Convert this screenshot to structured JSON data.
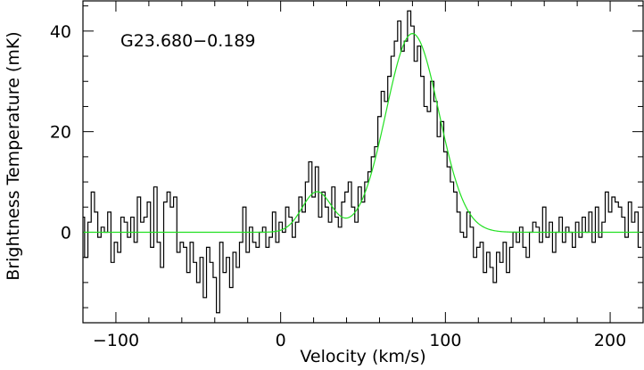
{
  "chart_data": {
    "type": "line",
    "title": "G23.680−0.189",
    "xlabel": "Velocity (km/s)",
    "ylabel": "Brightness Temperature (mK)",
    "xlim": [
      -120,
      220
    ],
    "ylim": [
      -18,
      46
    ],
    "xticks": [
      -100,
      0,
      100,
      200
    ],
    "yticks": [
      0,
      20,
      40
    ],
    "grid": false,
    "legend": "none",
    "series": [
      {
        "style": "step",
        "color": "#000000",
        "x": [
          -120,
          -118,
          -116,
          -114,
          -112,
          -110,
          -108,
          -106,
          -104,
          -102,
          -100,
          -98,
          -96,
          -94,
          -92,
          -90,
          -88,
          -86,
          -84,
          -82,
          -80,
          -78,
          -76,
          -74,
          -72,
          -70,
          -68,
          -66,
          -64,
          -62,
          -60,
          -58,
          -56,
          -54,
          -52,
          -50,
          -48,
          -46,
          -44,
          -42,
          -40,
          -38,
          -36,
          -34,
          -32,
          -30,
          -28,
          -26,
          -24,
          -22,
          -20,
          -18,
          -16,
          -14,
          -12,
          -10,
          -8,
          -6,
          -4,
          -2,
          0,
          2,
          4,
          6,
          8,
          10,
          12,
          14,
          16,
          18,
          20,
          22,
          24,
          26,
          28,
          30,
          32,
          34,
          36,
          38,
          40,
          42,
          44,
          46,
          48,
          50,
          52,
          54,
          56,
          58,
          60,
          62,
          64,
          66,
          68,
          70,
          72,
          74,
          76,
          78,
          80,
          82,
          84,
          86,
          88,
          90,
          92,
          94,
          96,
          98,
          100,
          102,
          104,
          106,
          108,
          110,
          112,
          114,
          116,
          118,
          120,
          122,
          124,
          126,
          128,
          130,
          132,
          134,
          136,
          138,
          140,
          142,
          144,
          146,
          148,
          150,
          152,
          154,
          156,
          158,
          160,
          162,
          164,
          166,
          168,
          170,
          172,
          174,
          176,
          178,
          180,
          182,
          184,
          186,
          188,
          190,
          192,
          194,
          196,
          198,
          200,
          202,
          204,
          206,
          208,
          210,
          212,
          214,
          216,
          218
        ],
        "y": [
          3,
          -5,
          2,
          8,
          4,
          -1,
          1,
          0,
          4,
          -6,
          -2,
          -4,
          3,
          2,
          -1,
          3,
          -2,
          7,
          2,
          3,
          6,
          -3,
          9,
          -2,
          -7,
          6,
          8,
          5,
          7,
          -4,
          -2,
          -3,
          -8,
          -2,
          -6,
          -10,
          -5,
          -13,
          -3,
          -6,
          -9,
          -16,
          -2,
          -8,
          -5,
          -11,
          -4,
          -7,
          -2,
          5,
          -4,
          1,
          -2,
          -3,
          0,
          1,
          -3,
          -1,
          4,
          -2,
          2,
          0,
          5,
          3,
          -1,
          2,
          7,
          4,
          10,
          14,
          7,
          13,
          3,
          8,
          5,
          2,
          9,
          3,
          1,
          6,
          8,
          10,
          5,
          2,
          9,
          6,
          10,
          12,
          15,
          17,
          23,
          28,
          26,
          31,
          35,
          38,
          42,
          36,
          38,
          44,
          41,
          34,
          37,
          31,
          25,
          24,
          30,
          26,
          19,
          22,
          16,
          13,
          10,
          8,
          4,
          0,
          -1,
          4,
          1,
          -5,
          -3,
          -2,
          -8,
          -4,
          -7,
          -10,
          -4,
          -6,
          -2,
          -8,
          -3,
          0,
          -2,
          1,
          -3,
          -5,
          0,
          2,
          1,
          -2,
          5,
          -1,
          2,
          -4,
          0,
          3,
          -2,
          1,
          0,
          -3,
          2,
          -1,
          3,
          0,
          4,
          -2,
          5,
          -1,
          2,
          8,
          4,
          7,
          6,
          5,
          3,
          -1,
          6,
          2,
          4,
          -3
        ]
      },
      {
        "style": "line",
        "color": "#22e022",
        "model": "two-gaussian fit",
        "components": [
          {
            "amplitude": 8,
            "center": 22,
            "sigma": 9
          },
          {
            "amplitude": 39.5,
            "center": 80,
            "sigma": 16
          }
        ],
        "x_range": [
          -120,
          218
        ]
      }
    ]
  }
}
